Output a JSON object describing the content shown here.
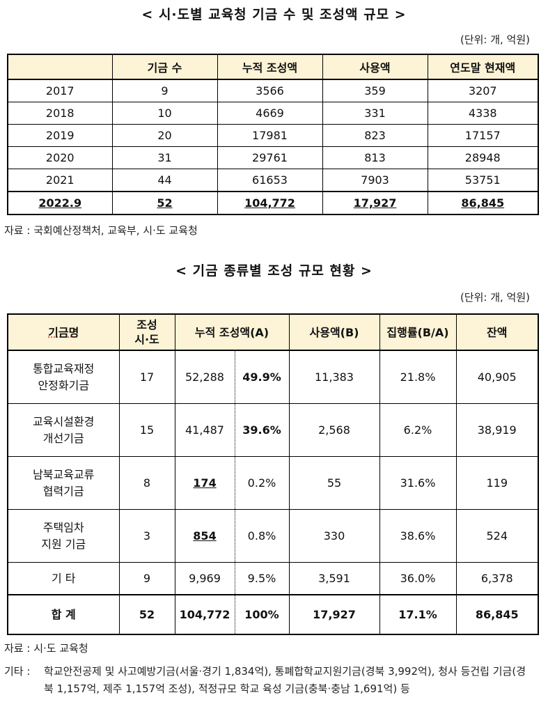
{
  "section1": {
    "title": "< 시·도별 교육청 기금 수 및 조성액 규모 >",
    "unit": "(단위: 개, 억원)",
    "headers": [
      "",
      "기금 수",
      "누적 조성액",
      "사용액",
      "연도말 현재액"
    ],
    "rows": [
      [
        "2017",
        "9",
        "3566",
        "359",
        "3207"
      ],
      [
        "2018",
        "10",
        "4669",
        "331",
        "4338"
      ],
      [
        "2019",
        "20",
        "17981",
        "823",
        "17157"
      ],
      [
        "2020",
        "31",
        "29761",
        "813",
        "28948"
      ],
      [
        "2021",
        "44",
        "61653",
        "7903",
        "53751"
      ]
    ],
    "total": [
      "2022.9",
      "52",
      "104,772",
      "17,927",
      "86,845"
    ],
    "source": "자료 : 국회예산정책처, 교육부, 시·도 교육청"
  },
  "section2": {
    "title": "< 기금 종류별 조성 규모 현황 >",
    "unit": "(단위: 개, 억원)",
    "headers": [
      "기금명",
      "조성\n시·도",
      "누적 조성액(A)",
      "사용액(B)",
      "집행률(B/A)",
      "잔액"
    ],
    "rows": [
      {
        "name": "통합교육재정\n안정화기금",
        "count": "17",
        "amount": "52,288",
        "share": "49.9%",
        "used": "11,383",
        "rate": "21.8%",
        "balance": "40,905"
      },
      {
        "name": "교육시설환경\n개선기금",
        "count": "15",
        "amount": "41,487",
        "share": "39.6%",
        "used": "2,568",
        "rate": "6.2%",
        "balance": "38,919"
      },
      {
        "name": "남북교육교류\n협력기금",
        "count": "8",
        "amount": "174",
        "share": "0.2%",
        "used": "55",
        "rate": "31.6%",
        "balance": "119"
      },
      {
        "name": "주택임차\n지원 기금",
        "count": "3",
        "amount": "854",
        "share": "0.8%",
        "used": "330",
        "rate": "38.6%",
        "balance": "524"
      },
      {
        "name": "기 타",
        "count": "9",
        "amount": "9,969",
        "share": "9.5%",
        "used": "3,591",
        "rate": "36.0%",
        "balance": "6,378"
      }
    ],
    "total": {
      "name": "합 계",
      "count": "52",
      "amount": "104,772",
      "share": "100%",
      "used": "17,927",
      "rate": "17.1%",
      "balance": "86,845"
    },
    "source": "자료 : 시·도 교육청",
    "other_label": "기타 :",
    "other_text": "학교안전공제 및 사고예방기금(서울·경기 1,834억), 통폐합학교지원기금(경북 3,992억), 청사 등건립 기금(경북 1,157억, 제주 1,157억 조성), 적정규모 학교 육성 기금(충북·충남 1,691억) 등"
  }
}
